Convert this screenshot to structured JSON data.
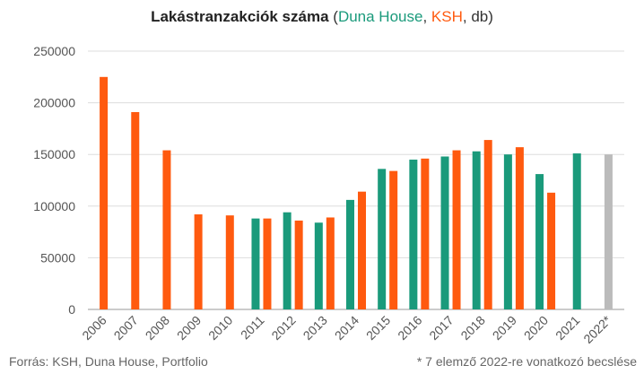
{
  "chart_data": {
    "type": "bar",
    "title": {
      "main": "Lakástranzakciók száma",
      "open": " (",
      "series1": "Duna House",
      "sep1": ", ",
      "series2": "KSH",
      "sep2": ", db)"
    },
    "categories": [
      "2006",
      "2007",
      "2008",
      "2009",
      "2010",
      "2011",
      "2012",
      "2013",
      "2014",
      "2015",
      "2016",
      "2017",
      "2018",
      "2019",
      "2020",
      "2021",
      "2022*"
    ],
    "series": [
      {
        "name": "Duna House",
        "color": "#1a9a7b",
        "values": [
          null,
          null,
          null,
          null,
          null,
          88000,
          94000,
          84000,
          106000,
          136000,
          145000,
          148000,
          153000,
          150000,
          131000,
          151000,
          null
        ]
      },
      {
        "name": "KSH",
        "color": "#ff5a0f",
        "values": [
          225000,
          191000,
          154000,
          92000,
          91000,
          88000,
          86000,
          89000,
          114000,
          134000,
          146000,
          154000,
          164000,
          157000,
          113000,
          null,
          null
        ]
      },
      {
        "name": "",
        "color": "#bbbbbb",
        "values": [
          null,
          null,
          null,
          null,
          null,
          null,
          null,
          null,
          null,
          null,
          null,
          null,
          null,
          null,
          null,
          null,
          150000
        ]
      }
    ],
    "ylim": [
      0,
      250000
    ],
    "yticks": [
      "0",
      "50000",
      "100000",
      "150000",
      "200000",
      "250000"
    ],
    "xlabel": "",
    "ylabel": "",
    "grid": true
  },
  "footer": {
    "source": "Forrás: KSH, Duna House, Portfolio",
    "note": "* 7 elemző 2022-re vonatkozó becslése"
  }
}
